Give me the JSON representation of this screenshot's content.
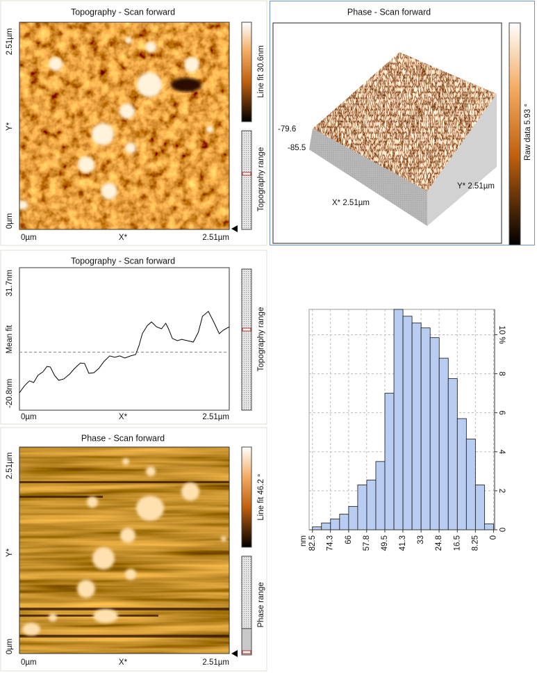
{
  "panels": {
    "topography_image": {
      "title": "Topography - Scan forward",
      "y_top": "2.51µm",
      "y_axis": "Y*",
      "y_bottom": "0µm",
      "x_left": "0µm",
      "x_axis": "X*",
      "x_right": "2.51µm",
      "colorbar_label": "Line fit 30.6nm",
      "range_label": "Topography range"
    },
    "phase_3d": {
      "title": "Phase - Scan forward",
      "z_top": "-79.6",
      "z_bottom": "-85.5",
      "x_label": "X* 2.51µm",
      "y_label": "Y* 2.51µm",
      "colorbar_label": "Raw data 5.93 °"
    },
    "phase_image": {
      "title": "Phase - Scan forward",
      "y_top": "2.51µm",
      "y_axis": "Y*",
      "y_bottom": "0µm",
      "x_left": "0µm",
      "x_axis": "X*",
      "x_right": "2.51µm",
      "colorbar_label": "Line fit 46.2 °",
      "range_label": "Phase range"
    }
  },
  "chart_data": [
    {
      "type": "line",
      "title": "Topography - Scan forward",
      "xlabel": "X*",
      "ylabel": "Mean fit",
      "range_label": "Topography range",
      "x": [
        0,
        0.06,
        0.12,
        0.17,
        0.22,
        0.28,
        0.33,
        0.37,
        0.42,
        0.47,
        0.53,
        0.6,
        0.66,
        0.73,
        0.78,
        0.83,
        0.89,
        0.95,
        1.01,
        1.08,
        1.14,
        1.2,
        1.26,
        1.33,
        1.39,
        1.43,
        1.47,
        1.53,
        1.58,
        1.64,
        1.7,
        1.75,
        1.78,
        1.83,
        1.89,
        1.94,
        2.01,
        2.08,
        2.14,
        2.19,
        2.26,
        2.32,
        2.39,
        2.44,
        2.51
      ],
      "series": [
        {
          "color": "#000000",
          "values": [
            -14.4,
            -11.8,
            -10.0,
            -10.6,
            -8.0,
            -6.7,
            -4.7,
            -4.9,
            -8.0,
            -9.8,
            -9.3,
            -7.5,
            -5.4,
            -3.4,
            -3.6,
            -7.2,
            -7.0,
            -5.4,
            -2.9,
            -0.8,
            -1.3,
            -0.8,
            -1.6,
            -0.8,
            -0.3,
            3.0,
            7.4,
            10.4,
            11.7,
            9.9,
            9.2,
            11.2,
            9.4,
            5.6,
            4.8,
            5.3,
            4.8,
            4.3,
            7.9,
            13.8,
            15.6,
            12.0,
            7.4,
            8.7,
            9.9
          ]
        }
      ],
      "xlim": [
        0,
        2.51
      ],
      "ylim": [
        -20.8,
        31.7
      ],
      "xticks": [
        {
          "value": 0,
          "label": "0µm"
        },
        {
          "value": 2.51,
          "label": "2.51µm"
        }
      ],
      "yticks": [
        {
          "value": -20.8,
          "label": "-20.8nm"
        },
        {
          "value": 31.7,
          "label": "31.7nm"
        }
      ]
    },
    {
      "type": "histogram",
      "xlabel": "nm",
      "color": "#b9cdf2",
      "bins": [
        82.5,
        78.375,
        74.25,
        70.125,
        66,
        61.875,
        57.75,
        53.625,
        49.5,
        45.375,
        41.25,
        37.125,
        33,
        28.875,
        24.75,
        20.625,
        16.5,
        12.375,
        8.25,
        4.125,
        0
      ],
      "values": [
        0.15,
        0.35,
        0.55,
        0.8,
        1.2,
        2.3,
        2.55,
        3.5,
        7.0,
        11.3,
        10.95,
        10.6,
        10.35,
        9.85,
        8.8,
        7.75,
        5.7,
        4.65,
        2.3,
        0.3
      ],
      "xlim": [
        84,
        -0.5
      ],
      "ylim": [
        0,
        11.3
      ],
      "xticks": [
        82.5,
        74.3,
        66,
        57.8,
        49.5,
        41.3,
        33,
        24.8,
        16.5,
        8.25,
        0
      ],
      "yticks": [
        0,
        2,
        4,
        6,
        8,
        {
          "value": 10,
          "label": "10 %"
        }
      ],
      "grid": true
    }
  ]
}
